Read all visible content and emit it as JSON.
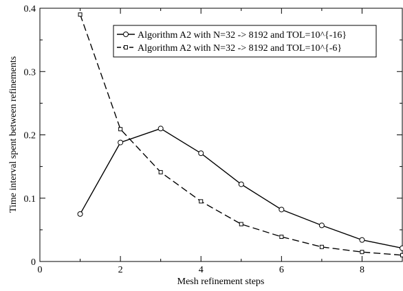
{
  "chart_data": {
    "type": "line",
    "title": "",
    "xlabel": "Mesh refinement steps",
    "ylabel": "Time interval spent between refinements",
    "xlim": [
      0,
      9
    ],
    "ylim": [
      0,
      0.4
    ],
    "x_ticks": [
      0,
      2,
      4,
      6,
      8
    ],
    "x_tick_labels": [
      "0",
      "2",
      "4",
      "6",
      "8"
    ],
    "y_ticks": [
      0,
      0.1,
      0.2,
      0.3,
      0.4
    ],
    "y_tick_labels": [
      "0",
      "0.1",
      "0.2",
      "0.3",
      "0.4"
    ],
    "grid": false,
    "legend_position": "top-right",
    "series": [
      {
        "name": "Algorithm A2 with  N=32 -> 8192 and TOL=10^{-16}",
        "marker": "circle",
        "line_style": "solid",
        "color": "#000000",
        "x": [
          1,
          2,
          3,
          4,
          5,
          6,
          7,
          8,
          9
        ],
        "y": [
          0.075,
          0.188,
          0.21,
          0.171,
          0.122,
          0.082,
          0.057,
          0.034,
          0.021
        ]
      },
      {
        "name": "Algorithm A2 with  N=32 -> 8192 and TOL=10^{-6}",
        "marker": "square",
        "line_style": "dashed",
        "color": "#000000",
        "x": [
          1,
          2,
          3,
          4,
          5,
          6,
          7,
          8,
          9
        ],
        "y": [
          0.39,
          0.209,
          0.141,
          0.095,
          0.059,
          0.039,
          0.023,
          0.015,
          0.01
        ]
      }
    ]
  }
}
